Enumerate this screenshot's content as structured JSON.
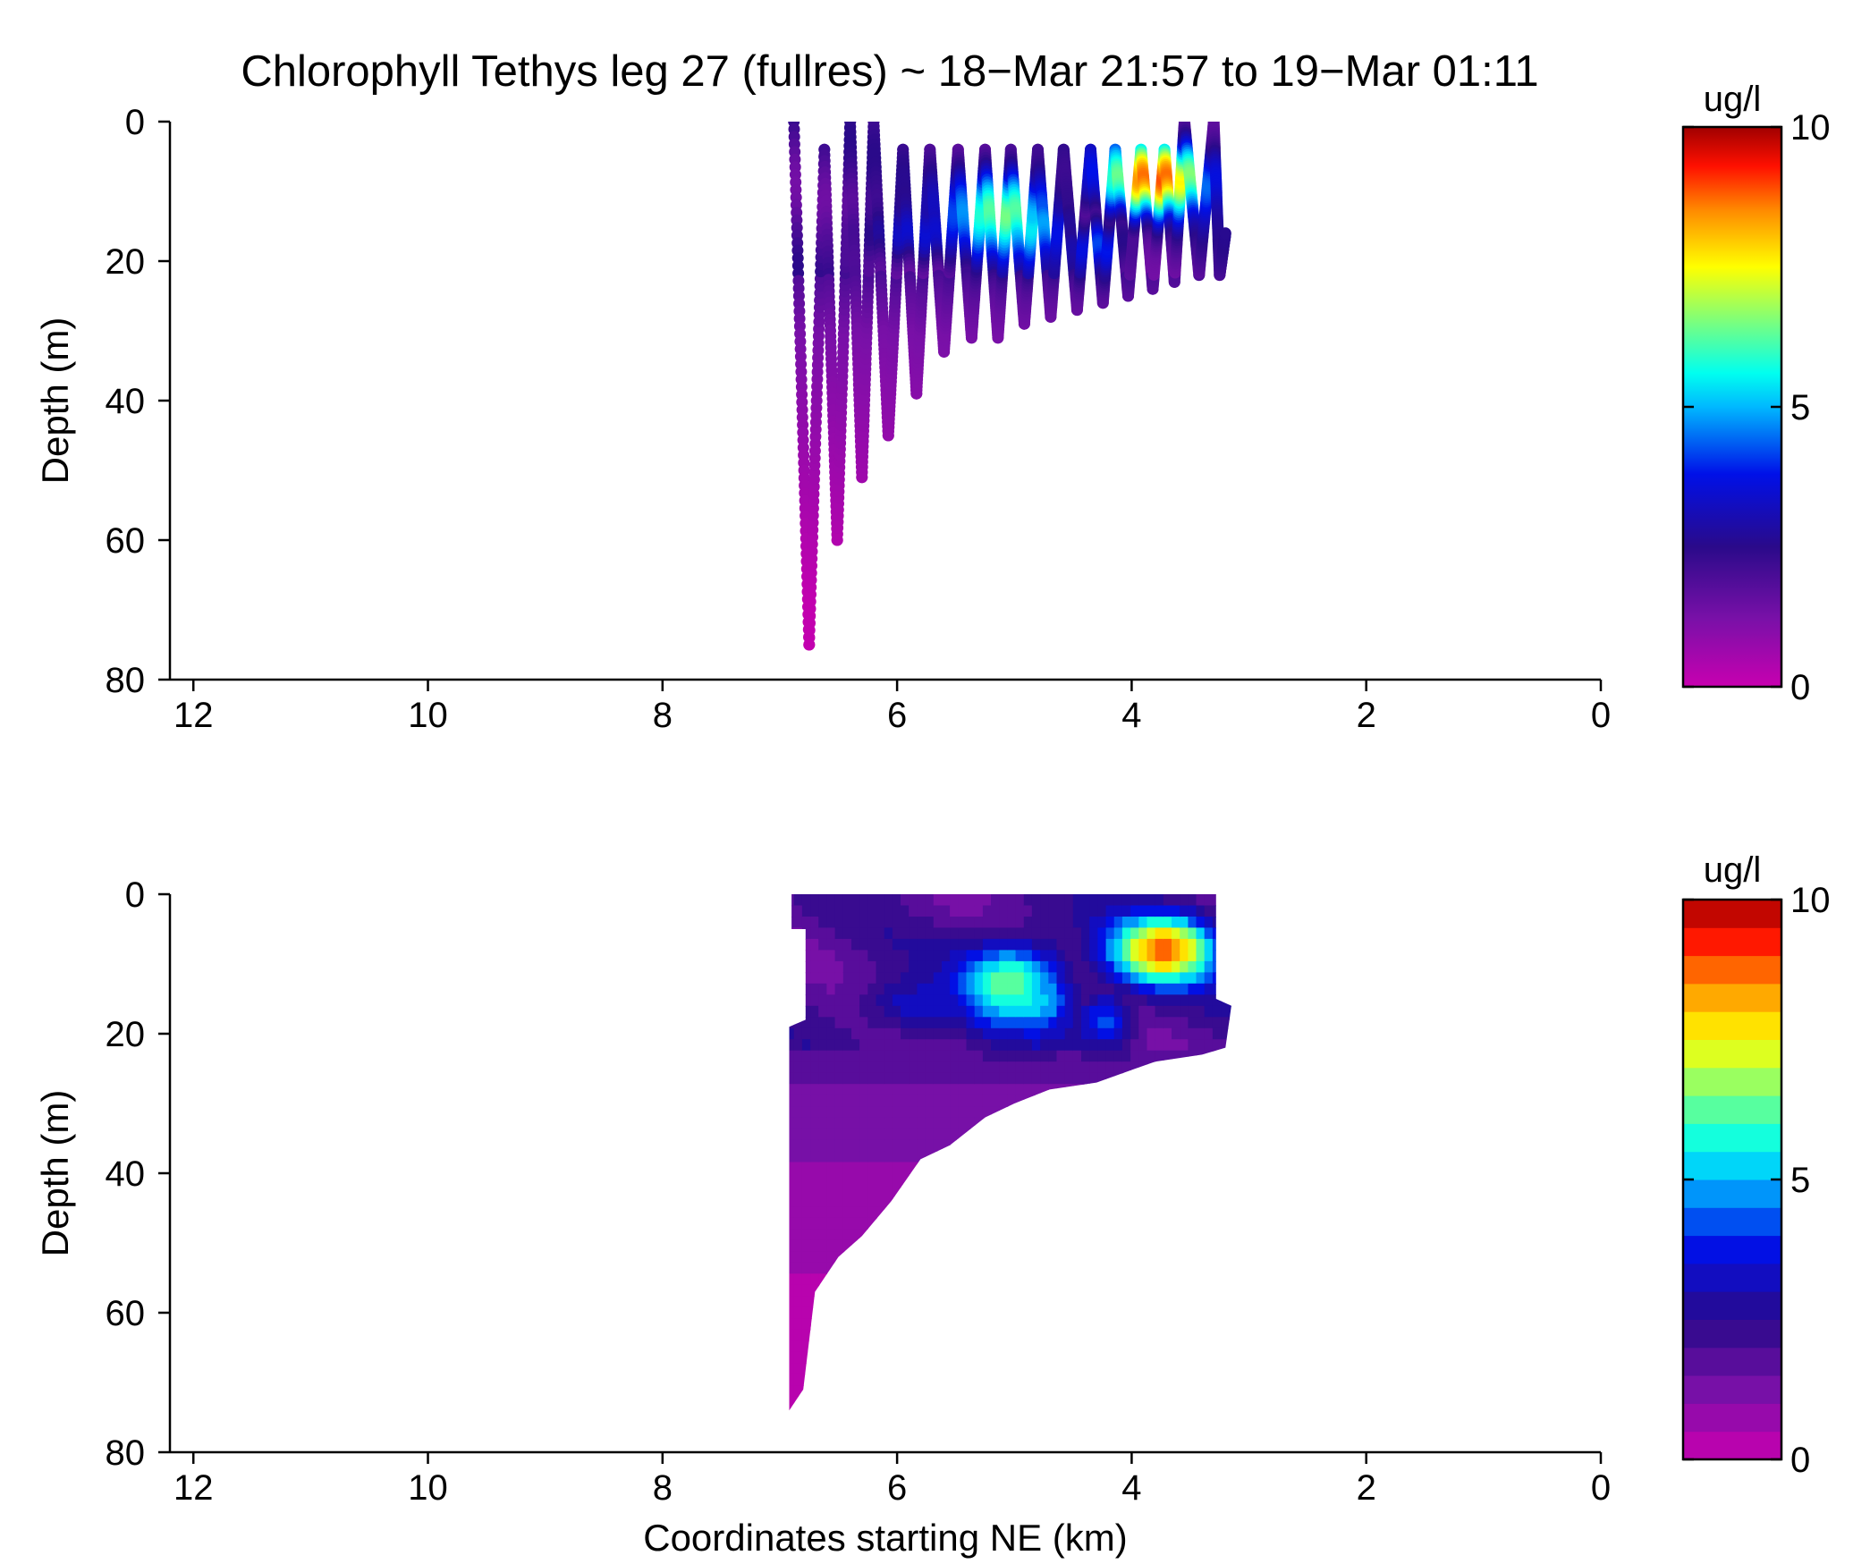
{
  "figure": {
    "title": "Chlorophyll Tethys leg 27 (fullres) ~ 18−Mar 21:57 to 19−Mar 01:11"
  },
  "chart_data": [
    {
      "type": "scatter",
      "panel": "top",
      "title": "Chlorophyll Tethys leg 27 (fullres) ~ 18−Mar 21:57 to 19−Mar 01:11",
      "xlabel": "",
      "ylabel": "Depth (m)",
      "xlim": [
        12.2,
        0
      ],
      "ylim": [
        0,
        80
      ],
      "y_reversed": true,
      "xticks": [
        12,
        10,
        8,
        6,
        4,
        2,
        0
      ],
      "yticks": [
        0,
        20,
        40,
        60,
        80
      ],
      "grid": false,
      "colormap": "jet-like (magenta to dark red)",
      "colorbar": {
        "label": "ug/l",
        "min": 0,
        "max": 10,
        "ticks": [
          0,
          5,
          10
        ],
        "continuous": true
      },
      "profiles": [
        {
          "x": 6.88,
          "top": 0,
          "bottom": 75
        },
        {
          "x": 6.62,
          "top": 4,
          "bottom": 60
        },
        {
          "x": 6.4,
          "top": 0,
          "bottom": 51
        },
        {
          "x": 6.2,
          "top": 0,
          "bottom": 45
        },
        {
          "x": 5.95,
          "top": 4,
          "bottom": 39
        },
        {
          "x": 5.72,
          "top": 4,
          "bottom": 33
        },
        {
          "x": 5.48,
          "top": 4,
          "bottom": 31
        },
        {
          "x": 5.25,
          "top": 4,
          "bottom": 31
        },
        {
          "x": 5.03,
          "top": 4,
          "bottom": 29
        },
        {
          "x": 4.8,
          "top": 4,
          "bottom": 28
        },
        {
          "x": 4.58,
          "top": 4,
          "bottom": 27
        },
        {
          "x": 4.35,
          "top": 4,
          "bottom": 26
        },
        {
          "x": 4.14,
          "top": 4,
          "bottom": 25
        },
        {
          "x": 3.92,
          "top": 4,
          "bottom": 24
        },
        {
          "x": 3.72,
          "top": 4,
          "bottom": 23
        },
        {
          "x": 3.55,
          "top": 0,
          "bottom": 22
        },
        {
          "x": 3.3,
          "top": 0,
          "bottom": 22
        },
        {
          "x": 3.2,
          "top": 16,
          "bottom": 23
        }
      ],
      "chl_features": [
        {
          "x": 5.1,
          "depth": 13,
          "value": 6.5,
          "sx": 0.45,
          "sy": 6
        },
        {
          "x": 4.9,
          "depth": 15,
          "value": 5.5,
          "sx": 0.35,
          "sy": 5
        },
        {
          "x": 3.8,
          "depth": 8,
          "value": 9.0,
          "sx": 0.45,
          "sy": 5
        },
        {
          "x": 4.3,
          "depth": 18,
          "value": 4.2,
          "sx": 0.25,
          "sy": 4
        },
        {
          "x": 5.8,
          "depth": 16,
          "value": 3.5,
          "sx": 0.55,
          "sy": 4
        }
      ]
    },
    {
      "type": "heatmap",
      "panel": "bottom",
      "title": "",
      "xlabel": "Coordinates starting NE (km)",
      "ylabel": "Depth (m)",
      "xlim": [
        12.2,
        0
      ],
      "ylim": [
        0,
        80
      ],
      "y_reversed": true,
      "xticks": [
        12,
        10,
        8,
        6,
        4,
        2,
        0
      ],
      "yticks": [
        0,
        20,
        40,
        60,
        80
      ],
      "grid": false,
      "colormap": "jet-like (magenta to dark red), 20 discrete contour levels",
      "colorbar": {
        "label": "ug/l",
        "min": 0,
        "max": 10,
        "ticks": [
          0,
          5,
          10
        ],
        "levels": 20
      },
      "note_shape": "filled contour of interpolated chlorophyll over the surveyed region",
      "region_bottom_depth": [
        [
          6.92,
          74
        ],
        [
          6.8,
          71
        ],
        [
          6.7,
          57
        ],
        [
          6.5,
          52
        ],
        [
          6.3,
          49
        ],
        [
          6.05,
          44
        ],
        [
          5.8,
          38
        ],
        [
          5.55,
          36
        ],
        [
          5.25,
          32
        ],
        [
          5.0,
          30
        ],
        [
          4.7,
          28
        ],
        [
          4.3,
          27
        ],
        [
          3.8,
          24
        ],
        [
          3.4,
          23
        ],
        [
          3.2,
          22
        ]
      ]
    }
  ]
}
